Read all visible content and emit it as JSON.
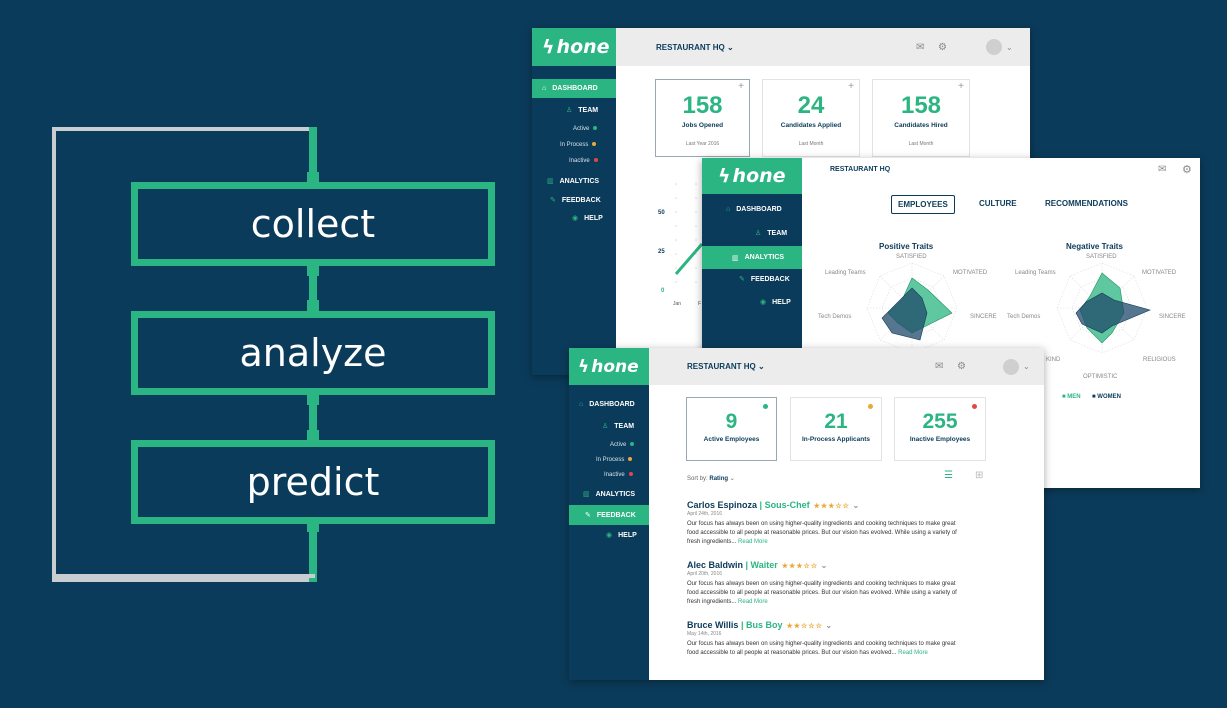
{
  "flow": {
    "steps": [
      "collect",
      "analyze",
      "predict"
    ]
  },
  "app": {
    "logo_text": "hone",
    "org": "RESTAURANT HQ",
    "nav": {
      "dashboard": "DASHBOARD",
      "team": "TEAM",
      "active": "Active",
      "in_process": "In Process",
      "inactive": "Inactive",
      "analytics": "ANALYTICS",
      "feedback": "FEEDBACK",
      "help": "HELP"
    }
  },
  "dashboard_window": {
    "kpis": [
      {
        "value": "158",
        "label": "Jobs Opened",
        "sub": "Last Year 2016"
      },
      {
        "value": "24",
        "label": "Candidates Applied",
        "sub": "Last Month"
      },
      {
        "value": "158",
        "label": "Candidates Hired",
        "sub": "Last Month"
      }
    ],
    "chart_ticks": [
      "50",
      "25",
      "0"
    ],
    "chart_x": [
      "Jan",
      "F"
    ]
  },
  "analytics_window": {
    "tabs": [
      "EMPLOYEES",
      "CULTURE",
      "RECOMMENDATIONS"
    ],
    "positive_title": "Positive Traits",
    "negative_title": "Negative Traits",
    "axes": [
      "SATISFIED",
      "MOTIVATED",
      "SINCERE",
      "RELIGIOUS",
      "OPTIMISTIC",
      "KIND",
      "Tech Demos",
      "Leading Teams"
    ],
    "legend": [
      "MEN",
      "WOMEN"
    ]
  },
  "team_window": {
    "kpis": [
      {
        "value": "9",
        "label": "Active Employees"
      },
      {
        "value": "21",
        "label": "In-Process Applicants"
      },
      {
        "value": "255",
        "label": "Inactive Employees"
      }
    ],
    "sort_label": "Sort by:",
    "sort_value": "Rating",
    "reviews": [
      {
        "name": "Carlos Espinoza",
        "role": "| Sous-Chef",
        "stars": "★★★☆☆",
        "date": "April 24th, 2016",
        "text": "Our focus has always been on using higher-quality ingredients and cooking techniques to make great food accessible to all people at reasonable prices. But our vision has evolved. While using a variety of fresh ingredients...",
        "more": "Read More"
      },
      {
        "name": "Alec Baldwin",
        "role": "| Waiter",
        "stars": "★★★☆☆",
        "date": "April 20th, 2016",
        "text": "Our focus has always been on using higher-quality ingredients and cooking techniques to make great food accessible to all people at reasonable prices. But our vision has evolved. While using a variety of fresh ingredients...",
        "more": "Read More"
      },
      {
        "name": "Bruce Willis",
        "role": "| Bus Boy",
        "stars": "★★☆☆☆",
        "date": "May 14th, 2016",
        "text": "Our focus has always been on using higher-quality ingredients and cooking techniques to make great food accessible to all people at reasonable prices. But our vision has evolved...",
        "more": "Read More"
      }
    ]
  },
  "colors": {
    "brand_green": "#2bb582",
    "navy": "#0b3b5a",
    "status_active": "#2bb582",
    "status_in_process": "#e8a93b",
    "status_inactive": "#e04848"
  }
}
